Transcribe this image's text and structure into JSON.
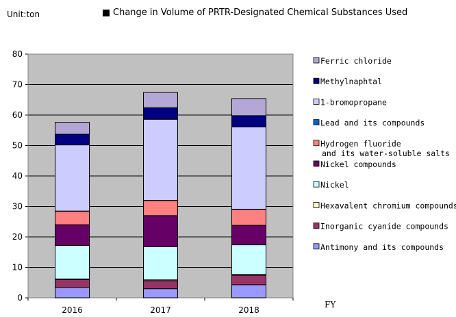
{
  "unit_label": "Unit:ton",
  "chart_data": {
    "type": "bar",
    "stacked": true,
    "title": "Change in Volume of PRTR-Designated Chemical Substances Used",
    "xlabel": "FY",
    "ylabel": "",
    "ylim": [
      0,
      80
    ],
    "yticks": [
      0,
      10,
      20,
      30,
      40,
      50,
      60,
      70,
      80
    ],
    "grid": true,
    "legend_position": "right",
    "categories": [
      "2016",
      "2017",
      "2018"
    ],
    "series": [
      {
        "name": "Antimony and its compounds",
        "color": "#9999ff",
        "values": [
          3.4,
          3.0,
          4.3
        ]
      },
      {
        "name": "Inorganic cyanide compounds",
        "color": "#993366",
        "values": [
          2.6,
          2.6,
          3.1
        ]
      },
      {
        "name": "Hexavalent chromium compounds",
        "color": "#ffffcc",
        "values": [
          0.2,
          0.3,
          0.3
        ]
      },
      {
        "name": "Nickel",
        "color": "#ccffff",
        "values": [
          11.0,
          10.9,
          9.7
        ]
      },
      {
        "name": "Nickel compounds",
        "color": "#660066",
        "values": [
          6.8,
          10.2,
          6.4
        ]
      },
      {
        "name": "Hydrogen fluoride\nand its water-soluble salts",
        "color": "#ff8080",
        "values": [
          4.4,
          4.9,
          5.2
        ]
      },
      {
        "name": "Lead and its compounds",
        "color": "#0066cc",
        "values": [
          0.1,
          0.1,
          0.1
        ]
      },
      {
        "name": "1-bromopropane",
        "color": "#ccccff",
        "values": [
          21.7,
          26.6,
          27.0
        ]
      },
      {
        "name": "Methylnaphtal",
        "color": "#000080",
        "values": [
          3.5,
          3.8,
          3.7
        ]
      },
      {
        "name": "Ferric chloride",
        "color": "#b4a7d6",
        "values": [
          3.9,
          5.0,
          5.6
        ]
      }
    ]
  }
}
